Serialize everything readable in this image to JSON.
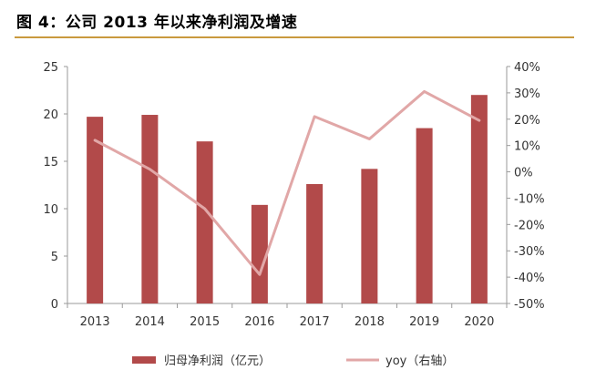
{
  "figure": {
    "title": "图 4：公司 2013 年以来净利润及增速"
  },
  "colors": {
    "bar": "#b24a4a",
    "line": "#e1a7a7",
    "title_rule": "#c99a3e",
    "axis": "#9a9a9a"
  },
  "chart_data": {
    "type": "bar",
    "categories": [
      "2013",
      "2014",
      "2015",
      "2016",
      "2017",
      "2018",
      "2019",
      "2020"
    ],
    "series": [
      {
        "name": "归母净利润（亿元）",
        "type": "bar",
        "axis": "left",
        "values": [
          19.7,
          19.9,
          17.1,
          10.4,
          12.6,
          14.2,
          18.5,
          22.0
        ]
      },
      {
        "name": "yoy（右轴）",
        "type": "line",
        "axis": "right",
        "values": [
          12.0,
          1.0,
          -14.0,
          -39.0,
          21.0,
          12.5,
          30.5,
          19.5
        ]
      }
    ],
    "y_left": {
      "ticks": [
        "0",
        "5",
        "10",
        "15",
        "20",
        "25"
      ],
      "lim": [
        0,
        25
      ]
    },
    "y_right": {
      "ticks": [
        "-50%",
        "-40%",
        "-30%",
        "-20%",
        "-10%",
        "0%",
        "10%",
        "20%",
        "30%",
        "40%"
      ],
      "lim": [
        -50,
        40
      ]
    },
    "grid": false,
    "legend_position": "bottom"
  }
}
